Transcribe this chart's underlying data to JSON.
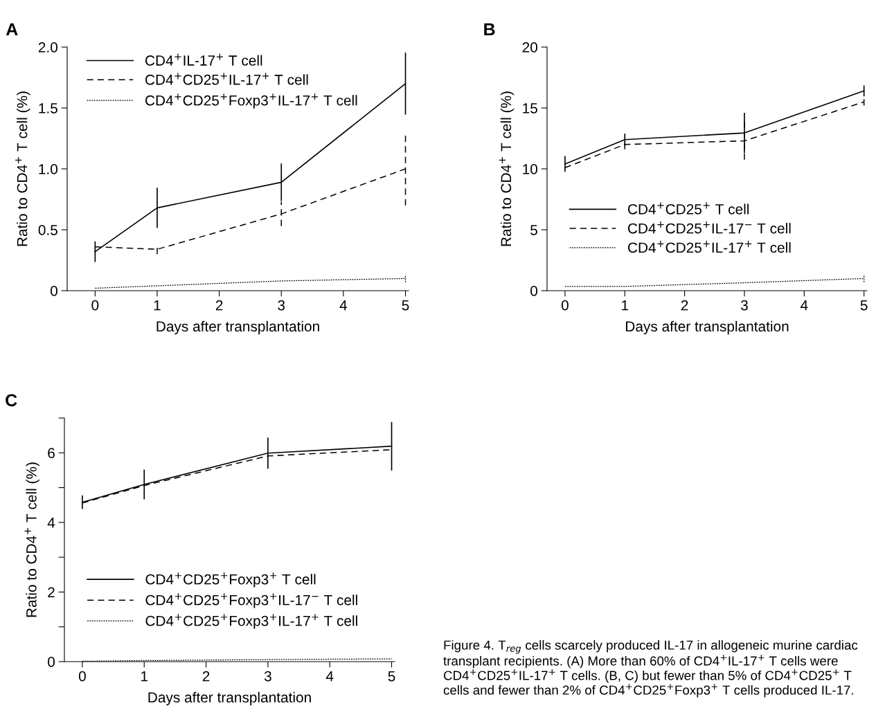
{
  "chart_data": [
    {
      "type": "line",
      "title": "A",
      "xlabel": "Days after transplantation",
      "ylabel": "Ratio to CD4$^{+}$ T cell (%)",
      "x": [
        0,
        1,
        3,
        5
      ],
      "xlim": [
        -0.45,
        5.05
      ],
      "xticks": [
        0,
        1,
        2,
        3,
        4,
        5
      ],
      "ylim": [
        0,
        2.0
      ],
      "yticks": [
        0,
        0.5,
        {
          "value": 1.0,
          "label": "1.0"
        },
        1.5,
        {
          "value": 2.0,
          "label": "2.0"
        }
      ],
      "legend": "top left",
      "grid": false,
      "series": [
        {
          "name": "CD4$^{+}$IL-17$^{+}$ T cell",
          "color": "#000000",
          "line_style": "solid",
          "values": [
            0.32,
            0.68,
            0.89,
            1.7
          ],
          "errors": [
            0.08,
            0.16,
            0.15,
            0.25
          ]
        },
        {
          "name": "CD4$^{+}$CD25$^{+}$IL-17$^{+}$ T cell",
          "color": "#000000",
          "line_style": "dashed",
          "values": [
            0.36,
            0.34,
            0.63,
            1.0
          ],
          "errors": [
            null,
            0.04,
            0.1,
            0.3
          ]
        },
        {
          "name": "CD4$^{+}$CD25$^{+}$Foxp3$^{+}$IL-17$^{+}$ T cell",
          "color": "#000000",
          "line_style": "dotted",
          "values": [
            0.02,
            0.04,
            0.08,
            0.1
          ],
          "errors": [
            null,
            null,
            null,
            0.03
          ]
        }
      ]
    },
    {
      "type": "line",
      "title": "B",
      "xlabel": "Days after transplantation",
      "ylabel": "Ratio to CD4$^{+}$ T cell (%)",
      "x": [
        0,
        1,
        3,
        5
      ],
      "xlim": [
        -0.3,
        5.05
      ],
      "xticks": [
        0,
        1,
        2,
        3,
        4,
        5
      ],
      "ylim": [
        0,
        20
      ],
      "yticks": [
        0,
        5,
        10,
        15,
        20
      ],
      "legend": "left",
      "grid": false,
      "series": [
        {
          "name": "CD4$^{+}$CD25$^{+}$ T cell",
          "color": "#000000",
          "line_style": "solid",
          "values": [
            10.4,
            12.4,
            12.95,
            16.4
          ],
          "errors": [
            0.6,
            0.45,
            1.6,
            0.4
          ]
        },
        {
          "name": "CD4$^{+}$CD25$^{+}$IL-17$^{−}$ T cell",
          "color": "#000000",
          "line_style": "dashed",
          "values": [
            10.1,
            12.0,
            12.3,
            15.5
          ],
          "errors": [
            null,
            0.4,
            1.55,
            0.3
          ]
        },
        {
          "name": "CD4$^{+}$CD25$^{+}$IL-17$^{+}$ T cell",
          "color": "#000000",
          "line_style": "dotted",
          "values": [
            0.35,
            0.35,
            0.65,
            1.0
          ],
          "errors": [
            null,
            null,
            null,
            0.3
          ]
        }
      ]
    },
    {
      "type": "line",
      "title": "C",
      "xlabel": "Days after transplantation",
      "ylabel": "Ratio to CD4$^{+}$ T cell (%)",
      "x": [
        0,
        1,
        3,
        5
      ],
      "xlim": [
        -0.29,
        5.05
      ],
      "xticks": [
        0,
        1,
        2,
        3,
        4,
        5
      ],
      "ylim": [
        0,
        7
      ],
      "yticks": [
        0,
        {
          "value": 1,
          "label": null
        },
        2,
        {
          "value": 3,
          "label": null
        },
        4,
        {
          "value": 5,
          "label": null
        },
        6,
        {
          "value": 7,
          "label": null
        }
      ],
      "legend": "left",
      "grid": false,
      "annotations": [
        "Figure 4. T$_{reg}$ cells scarcely produced IL-17 in allogeneic murine cardiac\ntransplant recipients. (A) More than 60% of CD4$^{+}$IL-17$^{+}$ T cells were\nCD4$^{+}$CD25$^{+}$IL-17$^{+}$ T cells. (B, C) but fewer than 5% of CD4$^{+}$CD25$^{+}$ T\ncells and fewer than 2% of CD4$^{+}$CD25$^{+}$Foxp3$^{+}$ T cells produced IL-17."
      ],
      "series": [
        {
          "name": "CD4$^{+}$CD25$^{+}$Foxp3$^{+}$ T cell",
          "color": "#000000",
          "line_style": "solid",
          "values": [
            4.58,
            5.09,
            5.99,
            6.19
          ],
          "errors": [
            0.18,
            0.41,
            0.43,
            0.68
          ]
        },
        {
          "name": "CD4$^{+}$CD25$^{+}$Foxp3$^{+}$IL-17$^{−}$ T cell",
          "color": "#000000",
          "line_style": "dashed",
          "values": [
            4.56,
            5.06,
            5.91,
            6.09
          ],
          "errors": [
            null,
            null,
            null,
            null
          ]
        },
        {
          "name": "CD4$^{+}$CD25$^{+}$Foxp3$^{+}$IL-17$^{+}$ T cell",
          "color": "#000000",
          "line_style": "dotted",
          "values": [
            0.01,
            0.03,
            0.06,
            0.08
          ],
          "errors": [
            null,
            null,
            null,
            null
          ]
        }
      ]
    }
  ]
}
